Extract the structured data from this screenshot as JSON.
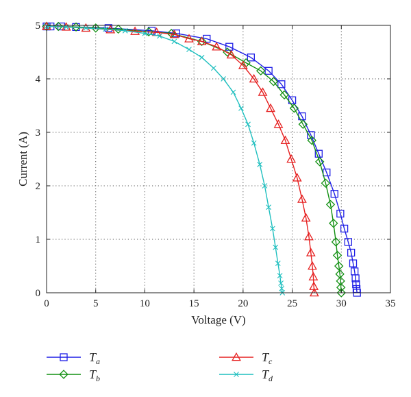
{
  "chart_data": {
    "type": "line",
    "title": "",
    "xlabel": "Voltage (V)",
    "ylabel": "Current (A)",
    "xlim": [
      0,
      35
    ],
    "ylim": [
      0,
      5
    ],
    "xticks": [
      "0",
      "5",
      "10",
      "15",
      "20",
      "25",
      "30",
      "35"
    ],
    "yticks": [
      "0",
      "1",
      "2",
      "3",
      "4",
      "5"
    ],
    "grid": true,
    "legend_position": "below",
    "series": [
      {
        "name": "Ta",
        "name_main": "T",
        "name_sub": "a",
        "color": "#1f1fe6",
        "marker": "square",
        "x": [
          0,
          0.4,
          1.5,
          3,
          6.3,
          10.7,
          13.2,
          16.3,
          18.6,
          20.8,
          22.6,
          23.9,
          25,
          26,
          26.9,
          27.7,
          28.5,
          29.3,
          29.9,
          30.3,
          30.7,
          31.0,
          31.2,
          31.35,
          31.45,
          31.5,
          31.55,
          31.6
        ],
        "y": [
          4.98,
          4.98,
          4.98,
          4.97,
          4.95,
          4.9,
          4.85,
          4.75,
          4.6,
          4.4,
          4.15,
          3.9,
          3.6,
          3.3,
          2.95,
          2.6,
          2.25,
          1.85,
          1.48,
          1.2,
          0.95,
          0.75,
          0.55,
          0.4,
          0.27,
          0.16,
          0.07,
          0.0
        ]
      },
      {
        "name": "Tb",
        "name_main": "T",
        "name_sub": "b",
        "color": "#129012",
        "marker": "diamond",
        "x": [
          0,
          1.2,
          3,
          5,
          7.3,
          10.4,
          12.7,
          15.8,
          18.4,
          20.3,
          21.8,
          23.1,
          24.2,
          25.2,
          26.1,
          27,
          27.8,
          28.4,
          28.9,
          29.2,
          29.45,
          29.6,
          29.75,
          29.85,
          29.92,
          29.96,
          30.0
        ],
        "y": [
          4.98,
          4.98,
          4.97,
          4.95,
          4.93,
          4.88,
          4.85,
          4.7,
          4.5,
          4.3,
          4.15,
          3.95,
          3.7,
          3.45,
          3.15,
          2.85,
          2.45,
          2.05,
          1.65,
          1.3,
          0.95,
          0.7,
          0.5,
          0.35,
          0.22,
          0.1,
          0.0
        ]
      },
      {
        "name": "Tc",
        "name_main": "T",
        "name_sub": "c",
        "color": "#e62020",
        "marker": "triangle",
        "x": [
          0,
          2,
          4,
          6.5,
          9,
          11.2,
          13,
          14.5,
          15.8,
          17.3,
          18.8,
          20,
          21.1,
          22,
          22.8,
          23.6,
          24.3,
          24.9,
          25.5,
          26,
          26.4,
          26.7,
          26.9,
          27.05,
          27.15,
          27.2,
          27.25
        ],
        "y": [
          4.98,
          4.97,
          4.95,
          4.92,
          4.89,
          4.87,
          4.83,
          4.75,
          4.7,
          4.6,
          4.45,
          4.25,
          4.0,
          3.75,
          3.45,
          3.15,
          2.85,
          2.5,
          2.15,
          1.75,
          1.4,
          1.05,
          0.75,
          0.5,
          0.3,
          0.12,
          0.0
        ]
      },
      {
        "name": "Td",
        "name_main": "T",
        "name_sub": "d",
        "color": "#1fbfbf",
        "marker": "x",
        "x": [
          0,
          2,
          4,
          6,
          8,
          10,
          11.5,
          13,
          14.5,
          15.8,
          17,
          18,
          19,
          19.8,
          20.5,
          21.1,
          21.7,
          22.2,
          22.6,
          23,
          23.3,
          23.55,
          23.75,
          23.85,
          23.93,
          24.0
        ],
        "y": [
          4.98,
          4.97,
          4.95,
          4.93,
          4.9,
          4.85,
          4.8,
          4.7,
          4.55,
          4.4,
          4.2,
          4.0,
          3.75,
          3.45,
          3.15,
          2.8,
          2.4,
          2.0,
          1.6,
          1.2,
          0.85,
          0.55,
          0.32,
          0.18,
          0.08,
          0.0
        ]
      }
    ]
  }
}
